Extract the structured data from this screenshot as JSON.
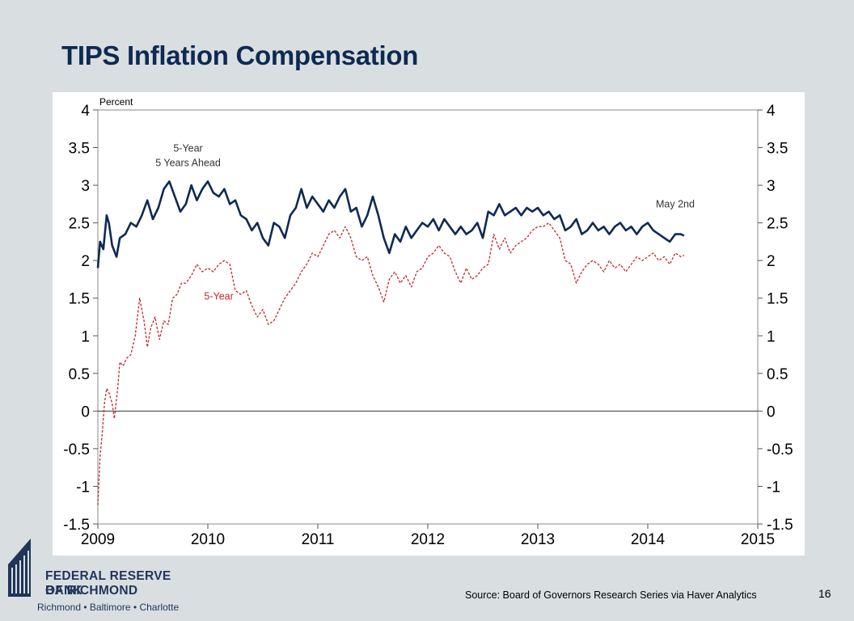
{
  "slide": {
    "title": "TIPS Inflation Compensation",
    "source": "Source: Board of Governors Research Series via Haver Analytics",
    "page_number": "16"
  },
  "logo": {
    "line1": "FEDERAL RESERVE BANK",
    "line2": "OF RICHMOND",
    "cities": "Richmond • Baltimore • Charlotte",
    "color": "#1f3559"
  },
  "colors": {
    "five_year_five_ahead": "#0e2a52",
    "five_year": "#c0272d",
    "background": "#d9dfe1"
  },
  "chart_data": {
    "type": "line",
    "ylabel": "Percent",
    "ylim": [
      -1.5,
      4
    ],
    "xlim": [
      2009,
      2015
    ],
    "y_ticks": [
      "4",
      "3.5",
      "3",
      "2.5",
      "2",
      "1.5",
      "1",
      "0.5",
      "0",
      "-0.5",
      "-1",
      "-1.5"
    ],
    "x_ticks": [
      "2009",
      "2010",
      "2011",
      "2012",
      "2013",
      "2014",
      "2015"
    ],
    "grid": false,
    "zero_line": true,
    "annotations": [
      {
        "lines": [
          "5-Year",
          "5 Years Ahead"
        ],
        "series": 0
      },
      {
        "lines": [
          "5-Year"
        ],
        "series": 1
      },
      {
        "lines": [
          "May 2nd"
        ],
        "series": 0
      }
    ],
    "series": [
      {
        "name": "5-Year 5 Years Ahead",
        "style": "solid",
        "x": [
          2009.0,
          2009.02,
          2009.05,
          2009.08,
          2009.1,
          2009.13,
          2009.17,
          2009.2,
          2009.25,
          2009.3,
          2009.35,
          2009.4,
          2009.45,
          2009.5,
          2009.55,
          2009.6,
          2009.65,
          2009.7,
          2009.75,
          2009.8,
          2009.85,
          2009.9,
          2009.95,
          2010.0,
          2010.05,
          2010.1,
          2010.15,
          2010.2,
          2010.25,
          2010.3,
          2010.35,
          2010.4,
          2010.45,
          2010.5,
          2010.55,
          2010.6,
          2010.65,
          2010.7,
          2010.75,
          2010.8,
          2010.85,
          2010.9,
          2010.95,
          2011.0,
          2011.05,
          2011.1,
          2011.15,
          2011.2,
          2011.25,
          2011.3,
          2011.35,
          2011.4,
          2011.45,
          2011.5,
          2011.55,
          2011.6,
          2011.65,
          2011.7,
          2011.75,
          2011.8,
          2011.85,
          2011.9,
          2011.95,
          2012.0,
          2012.05,
          2012.1,
          2012.15,
          2012.2,
          2012.25,
          2012.3,
          2012.35,
          2012.4,
          2012.45,
          2012.5,
          2012.55,
          2012.6,
          2012.65,
          2012.7,
          2012.75,
          2012.8,
          2012.85,
          2012.9,
          2012.95,
          2013.0,
          2013.05,
          2013.1,
          2013.15,
          2013.2,
          2013.25,
          2013.3,
          2013.35,
          2013.4,
          2013.45,
          2013.5,
          2013.55,
          2013.6,
          2013.65,
          2013.7,
          2013.75,
          2013.8,
          2013.85,
          2013.9,
          2013.95,
          2014.0,
          2014.05,
          2014.1,
          2014.15,
          2014.2,
          2014.25,
          2014.3,
          2014.33
        ],
        "values": [
          1.9,
          2.25,
          2.15,
          2.6,
          2.5,
          2.2,
          2.05,
          2.3,
          2.35,
          2.5,
          2.45,
          2.6,
          2.8,
          2.55,
          2.7,
          2.95,
          3.05,
          2.85,
          2.65,
          2.75,
          3.0,
          2.8,
          2.95,
          3.05,
          2.9,
          2.85,
          2.95,
          2.75,
          2.8,
          2.6,
          2.55,
          2.4,
          2.5,
          2.3,
          2.2,
          2.5,
          2.45,
          2.3,
          2.6,
          2.7,
          2.95,
          2.7,
          2.85,
          2.75,
          2.65,
          2.8,
          2.7,
          2.85,
          2.95,
          2.65,
          2.7,
          2.45,
          2.6,
          2.85,
          2.6,
          2.3,
          2.1,
          2.35,
          2.25,
          2.45,
          2.3,
          2.4,
          2.5,
          2.45,
          2.55,
          2.4,
          2.55,
          2.45,
          2.35,
          2.45,
          2.35,
          2.4,
          2.5,
          2.3,
          2.65,
          2.6,
          2.75,
          2.6,
          2.65,
          2.7,
          2.6,
          2.7,
          2.65,
          2.7,
          2.6,
          2.65,
          2.55,
          2.6,
          2.4,
          2.45,
          2.55,
          2.35,
          2.4,
          2.5,
          2.4,
          2.45,
          2.35,
          2.45,
          2.5,
          2.4,
          2.45,
          2.35,
          2.45,
          2.5,
          2.4,
          2.35,
          2.3,
          2.25,
          2.35,
          2.35,
          2.33
        ]
      },
      {
        "name": "5-Year",
        "style": "dashed",
        "x": [
          2009.0,
          2009.02,
          2009.04,
          2009.06,
          2009.08,
          2009.1,
          2009.13,
          2009.15,
          2009.18,
          2009.2,
          2009.23,
          2009.26,
          2009.3,
          2009.34,
          2009.38,
          2009.42,
          2009.45,
          2009.48,
          2009.52,
          2009.56,
          2009.6,
          2009.64,
          2009.68,
          2009.72,
          2009.76,
          2009.8,
          2009.85,
          2009.9,
          2009.95,
          2010.0,
          2010.05,
          2010.1,
          2010.15,
          2010.2,
          2010.25,
          2010.3,
          2010.35,
          2010.4,
          2010.45,
          2010.5,
          2010.55,
          2010.6,
          2010.65,
          2010.7,
          2010.75,
          2010.8,
          2010.85,
          2010.9,
          2010.95,
          2011.0,
          2011.05,
          2011.1,
          2011.15,
          2011.2,
          2011.25,
          2011.3,
          2011.35,
          2011.4,
          2011.45,
          2011.5,
          2011.55,
          2011.6,
          2011.65,
          2011.7,
          2011.75,
          2011.8,
          2011.85,
          2011.9,
          2011.95,
          2012.0,
          2012.05,
          2012.1,
          2012.15,
          2012.2,
          2012.25,
          2012.3,
          2012.35,
          2012.4,
          2012.45,
          2012.5,
          2012.55,
          2012.6,
          2012.65,
          2012.7,
          2012.75,
          2012.8,
          2012.85,
          2012.9,
          2012.95,
          2013.0,
          2013.05,
          2013.1,
          2013.15,
          2013.2,
          2013.25,
          2013.3,
          2013.35,
          2013.4,
          2013.45,
          2013.5,
          2013.55,
          2013.6,
          2013.65,
          2013.7,
          2013.75,
          2013.8,
          2013.85,
          2013.9,
          2013.95,
          2014.0,
          2014.05,
          2014.1,
          2014.15,
          2014.2,
          2014.25,
          2014.3,
          2014.33
        ],
        "values": [
          -1.25,
          -0.6,
          -0.3,
          0.1,
          0.3,
          0.25,
          0.1,
          -0.1,
          0.3,
          0.65,
          0.6,
          0.7,
          0.75,
          1.0,
          1.5,
          1.2,
          0.85,
          1.1,
          1.25,
          0.95,
          1.2,
          1.15,
          1.5,
          1.55,
          1.7,
          1.7,
          1.8,
          1.95,
          1.85,
          1.9,
          1.85,
          1.95,
          2.0,
          1.95,
          1.6,
          1.55,
          1.6,
          1.4,
          1.25,
          1.35,
          1.15,
          1.2,
          1.35,
          1.5,
          1.6,
          1.7,
          1.85,
          1.95,
          2.1,
          2.05,
          2.2,
          2.35,
          2.4,
          2.3,
          2.45,
          2.3,
          2.05,
          2.0,
          2.05,
          1.8,
          1.65,
          1.45,
          1.75,
          1.85,
          1.7,
          1.8,
          1.65,
          1.85,
          1.9,
          2.05,
          2.1,
          2.2,
          2.1,
          2.05,
          1.85,
          1.7,
          1.9,
          1.75,
          1.8,
          1.9,
          1.95,
          2.35,
          2.15,
          2.3,
          2.1,
          2.2,
          2.25,
          2.3,
          2.4,
          2.45,
          2.45,
          2.5,
          2.4,
          2.3,
          2.0,
          1.95,
          1.7,
          1.85,
          1.95,
          2.0,
          1.95,
          1.85,
          2.0,
          1.9,
          1.95,
          1.85,
          1.95,
          2.05,
          2.0,
          2.05,
          2.1,
          2.0,
          2.05,
          1.95,
          2.1,
          2.05,
          2.07
        ]
      }
    ]
  }
}
